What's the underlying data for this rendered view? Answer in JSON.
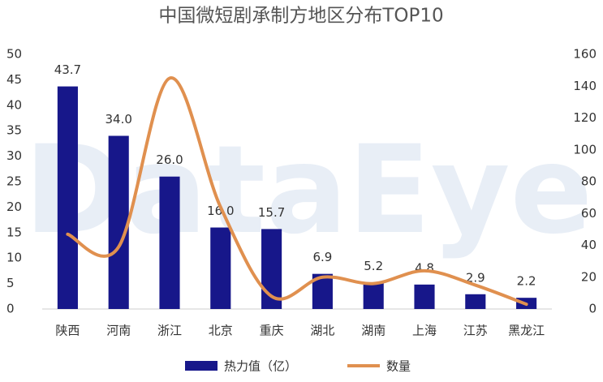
{
  "chart_data": {
    "type": "bar",
    "title": "中国微短剧承制方地区分布TOP10",
    "watermark": "DataEye",
    "categories": [
      "陕西",
      "河南",
      "浙江",
      "北京",
      "重庆",
      "湖北",
      "湖南",
      "上海",
      "江苏",
      "黑龙江"
    ],
    "series": [
      {
        "name": "热力值（亿）",
        "type": "bar",
        "color": "#17178a",
        "values": [
          43.7,
          34.0,
          26.0,
          16.0,
          15.7,
          6.9,
          5.2,
          4.8,
          2.9,
          2.2
        ],
        "value_labels": [
          "43.7",
          "34.0",
          "26.0",
          "16.0",
          "15.7",
          "6.9",
          "5.2",
          "4.8",
          "2.9",
          "2.2"
        ]
      },
      {
        "name": "数量",
        "type": "line",
        "axis": "y2",
        "color": "#e0904f",
        "values": [
          47,
          39,
          145,
          64,
          8,
          20,
          16,
          24,
          15,
          3
        ]
      }
    ],
    "ylim": [
      0,
      50
    ],
    "yticks": [
      0,
      5,
      10,
      15,
      20,
      25,
      30,
      35,
      40,
      45,
      50
    ],
    "y2lim": [
      0,
      160
    ],
    "y2ticks": [
      0,
      20,
      40,
      60,
      80,
      100,
      120,
      140,
      160
    ],
    "grid": false,
    "legend": "bottom"
  }
}
